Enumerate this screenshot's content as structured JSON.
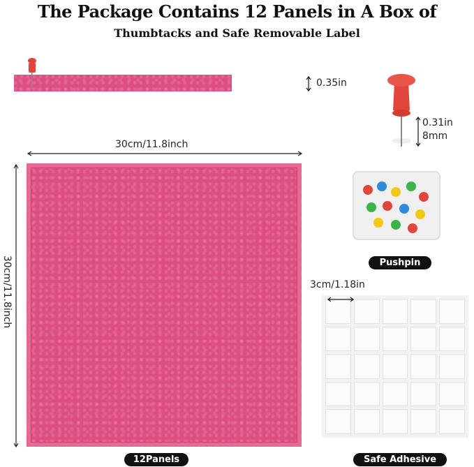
{
  "title_line1": "The Package Contains 12 Panels in A Box of",
  "title_line2": "Thumbtacks and Safe Removable Label",
  "thickness_label": "0.35in",
  "pin_length_in": "0.31in",
  "pin_length_mm": "8mm",
  "width_label": "30cm/11.8inch",
  "height_label": "30cm/11.8inch",
  "adhesive_size_label": "3cm/1.18in",
  "badges": {
    "panels": "12Panels",
    "pushpin": "Pushpin",
    "adhesive": "Safe Adhesive"
  },
  "colors": {
    "felt": "#dd4f84",
    "pin": "#e0463c",
    "badge": "#111111"
  }
}
